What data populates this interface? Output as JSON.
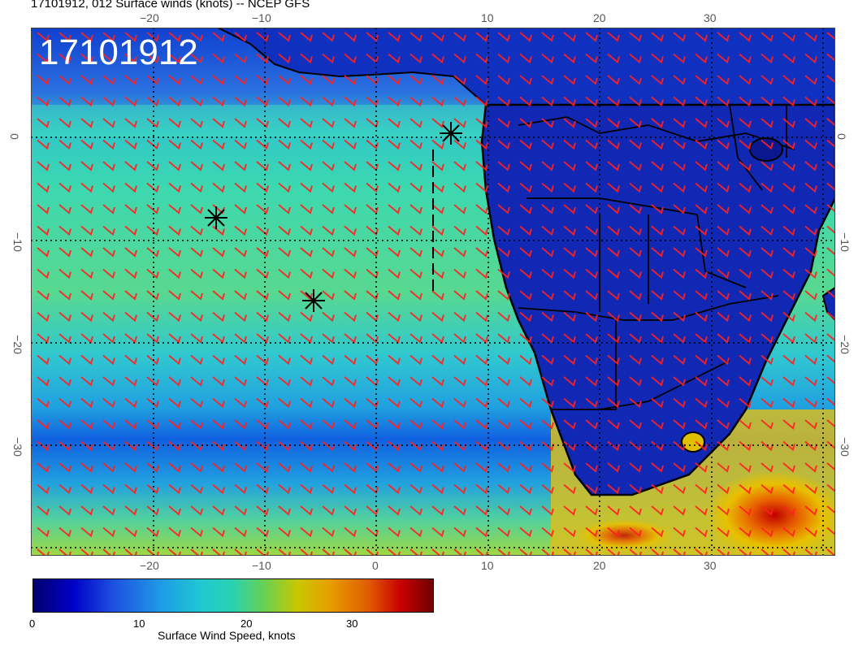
{
  "title": "17101912, 012 Surface winds (knots) -- NCEP GFS",
  "stamp": "17101912",
  "x_ticks": [
    "−20",
    "−10",
    "0",
    "10",
    "20",
    "30"
  ],
  "y_ticks": [
    "0",
    "−10",
    "−20",
    "−30"
  ],
  "colorbar": {
    "labels": [
      "0",
      "10",
      "20",
      "30"
    ],
    "title": "Surface Wind Speed, knots"
  },
  "colors": {
    "barb": "#ff2020",
    "coast": "#000000",
    "calm_ocean": "#1ea0e6",
    "trade_ocean": "#30d2c0",
    "land": "#1028b4"
  }
}
